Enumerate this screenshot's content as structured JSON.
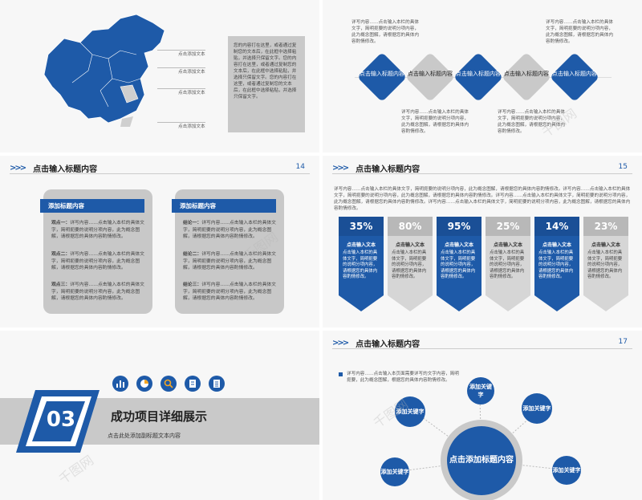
{
  "colors": {
    "blue": "#1e5aa8",
    "gray": "#c9c9c9",
    "bg": "#f7f7f7"
  },
  "slide1": {
    "labels": [
      "点击添加文本",
      "点击添加文本",
      "点击添加文本",
      "点击添加文本"
    ],
    "body": "您的内容打在这里，或者通过复制您的文本后，在此框中选择粘贴，并选择只保留文字。您的内容打在这里，或者通过复制您的文本后，在此框中选择粘贴，并选择只保留文字。您的内容打在这里，或者通过复制您的文本后，在此框中选择粘贴，并选择只保留文字。"
  },
  "slide2": {
    "top_texts": [
      "详写内容……点击输入本栏的具体文字，简明扼要的说明分项内容，此为概念图解，请根据您的具体内容酌情修改。",
      "详写内容……点击输入本栏的具体文字，简明扼要的说明分项内容，此为概念图解，请根据您的具体内容酌情修改。"
    ],
    "bottom_texts": [
      "详写内容……点击输入本栏的具体文字，简明扼要的说明分项内容，此为概念图解，请根据您的具体内容酌情修改。",
      "详写内容……点击输入本栏的具体文字，简明扼要的说明分项内容，此为概念图解，请根据您的具体内容酌情修改。"
    ],
    "diamonds": [
      "点击输入标题内容",
      "点击输入标题内容",
      "点击输入标题内容",
      "点击输入标题内容",
      "点击输入标题内容"
    ]
  },
  "slide3": {
    "title": "点击输入标题内容",
    "page": "14",
    "cards": [
      {
        "head": "添加标题内容",
        "items": [
          {
            "label": "观点一：",
            "text": "详写内容……点击输入本栏的具体文字，简明扼要的说明分项内容，此为概念图解，请根据您的具体内容酌情修改。"
          },
          {
            "label": "观点二：",
            "text": "详写内容……点击输入本栏的具体文字，简明扼要的说明分项内容，此为概念图解，请根据您的具体内容酌情修改。"
          },
          {
            "label": "观点三：",
            "text": "详写内容……点击输入本栏的具体文字，简明扼要的说明分项内容，此为概念图解，请根据您的具体内容酌情修改。"
          }
        ]
      },
      {
        "head": "添加标题内容",
        "items": [
          {
            "label": "结论一：",
            "text": "详写内容……点击输入本栏的具体文字，简明扼要的说明分项内容，此为概念图解，请根据您的具体内容酌情修改。"
          },
          {
            "label": "结论二：",
            "text": "详写内容……点击输入本栏的具体文字，简明扼要的说明分项内容，此为概念图解，请根据您的具体内容酌情修改。"
          },
          {
            "label": "结论三：",
            "text": "详写内容……点击输入本栏的具体文字，简明扼要的说明分项内容，此为概念图解，请根据您的具体内容酌情修改。"
          }
        ]
      }
    ]
  },
  "slide4": {
    "title": "点击输入标题内容",
    "page": "15",
    "intro": "详写内容……点击输入本栏的具体文字，简明扼要的说明分项内容，此为概念图解，请根据您的具体内容酌情修改。详写内容……点击输入本栏的具体文字，简明扼要的说明分项内容，此为概念图解，请根据您的具体内容酌情修改。详写内容……点击输入本栏的具体文字，简明扼要的说明分项内容，此为概念图解，请根据您的具体内容酌情修改。详写内容……点击输入本栏的具体文字，简明扼要的说明分项内容，此为概念图解，请根据您的具体内容酌情修改。",
    "columns": [
      {
        "pct": "35%",
        "head": "点击输入文本",
        "text": "点击输入本栏的具体文字，简明扼要的说明分项内容，请根据您的具体内容酌情修改。",
        "color": "blue"
      },
      {
        "pct": "80%",
        "head": "点击输入文本",
        "text": "点击输入本栏的具体文字，简明扼要的说明分项内容，请根据您的具体内容酌情修改。",
        "color": "gray"
      },
      {
        "pct": "95%",
        "head": "点击输入文本",
        "text": "点击输入本栏的具体文字，简明扼要的说明分项内容，请根据您的具体内容酌情修改。",
        "color": "blue"
      },
      {
        "pct": "25%",
        "head": "点击输入文本",
        "text": "点击输入本栏的具体文字，简明扼要的说明分项内容，请根据您的具体内容酌情修改。",
        "color": "gray"
      },
      {
        "pct": "14%",
        "head": "点击输入文本",
        "text": "点击输入本栏的具体文字，简明扼要的说明分项内容，请根据您的具体内容酌情修改。",
        "color": "blue"
      },
      {
        "pct": "23%",
        "head": "点击输入文本",
        "text": "点击输入本栏的具体文字，简明扼要的说明分项内容，请根据您的具体内容酌情修改。",
        "color": "gray"
      }
    ]
  },
  "slide5": {
    "number": "03",
    "title": "成功项目详细展示",
    "subtitle": "点击此处添加副标题文本内容",
    "icons": [
      "bar-chart-icon",
      "pie-chart-icon",
      "magnifier-icon",
      "book-icon",
      "document-icon"
    ]
  },
  "slide6": {
    "title": "点击输入标题内容",
    "page": "17",
    "intro": "详写内容……点击输入本页面需要详写的文字内容，简明扼要，此为概念图解，根据您的具体内容酌情修改。",
    "center": "点击添加标题内容",
    "nodes": [
      "添加关键字",
      "添加关键字",
      "添加关键字",
      "添加关键字",
      "添加关键字"
    ]
  }
}
